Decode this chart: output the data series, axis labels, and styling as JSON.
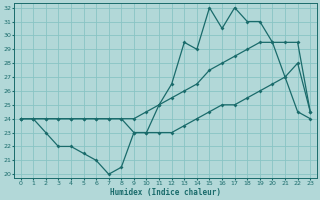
{
  "xlabel": "Humidex (Indice chaleur)",
  "bg_color": "#b2d8d8",
  "line_color": "#1a6b6b",
  "grid_color": "#89c4c4",
  "xlim": [
    -0.5,
    23.5
  ],
  "ylim": [
    19.7,
    32.3
  ],
  "xticks": [
    0,
    1,
    2,
    3,
    4,
    5,
    6,
    7,
    8,
    9,
    10,
    11,
    12,
    13,
    14,
    15,
    16,
    17,
    18,
    19,
    20,
    21,
    22,
    23
  ],
  "yticks": [
    20,
    21,
    22,
    23,
    24,
    25,
    26,
    27,
    28,
    29,
    30,
    31,
    32
  ],
  "line1_x": [
    0,
    1,
    2,
    3,
    4,
    5,
    6,
    7,
    8,
    9,
    10,
    11,
    12,
    13,
    14,
    15,
    16,
    17,
    18,
    19,
    20,
    21,
    22,
    23
  ],
  "line1_y": [
    24,
    24,
    23,
    22,
    22,
    21.5,
    21,
    20,
    20.5,
    23,
    23,
    25,
    26.5,
    29.5,
    29,
    32,
    30.5,
    32,
    31,
    31,
    29.5,
    27,
    24.5,
    24
  ],
  "line2_x": [
    0,
    1,
    2,
    3,
    4,
    5,
    6,
    7,
    8,
    9,
    10,
    11,
    12,
    13,
    14,
    15,
    16,
    17,
    18,
    19,
    20,
    21,
    22,
    23
  ],
  "line2_y": [
    24,
    24,
    24,
    24,
    24,
    24,
    24,
    24,
    24,
    24,
    24.5,
    25,
    25.5,
    26,
    26.5,
    27.5,
    28,
    28.5,
    29,
    29.5,
    29.5,
    29.5,
    29.5,
    24.5
  ],
  "line3_x": [
    0,
    1,
    2,
    3,
    4,
    5,
    6,
    7,
    8,
    9,
    10,
    11,
    12,
    13,
    14,
    15,
    16,
    17,
    18,
    19,
    20,
    21,
    22,
    23
  ],
  "line3_y": [
    24,
    24,
    24,
    24,
    24,
    24,
    24,
    24,
    24,
    23,
    23,
    23,
    23,
    23.5,
    24,
    24.5,
    25,
    25,
    25.5,
    26,
    26.5,
    27,
    28,
    24.5
  ]
}
